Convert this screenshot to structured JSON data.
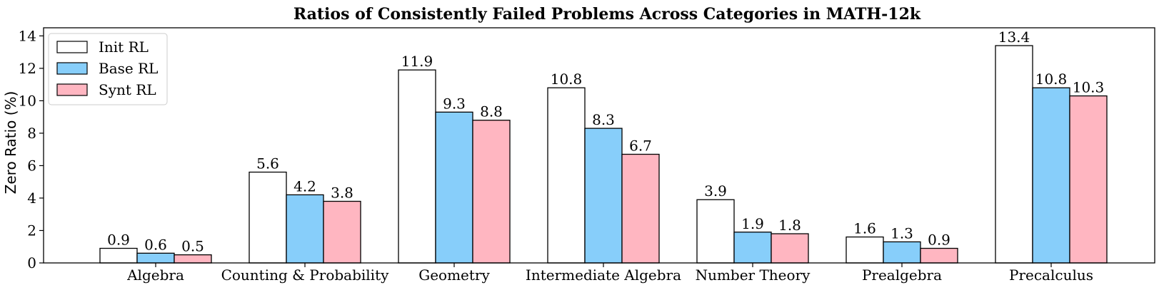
{
  "chart_data": {
    "type": "bar",
    "title": "Ratios of Consistently Failed Problems Across Categories in MATH-12k",
    "xlabel": "",
    "ylabel": "Zero Ratio (%)",
    "ylim": [
      0,
      14.5
    ],
    "yticks": [
      0,
      2,
      4,
      6,
      8,
      10,
      12,
      14
    ],
    "grid": false,
    "legend_position": "top-left",
    "categories": [
      "Algebra",
      "Counting & Probability",
      "Geometry",
      "Intermediate Algebra",
      "Number Theory",
      "Prealgebra",
      "Precalculus"
    ],
    "series": [
      {
        "name": "Init RL",
        "color": "#ffffff",
        "values": [
          0.9,
          5.6,
          11.9,
          10.8,
          3.9,
          1.6,
          13.4
        ]
      },
      {
        "name": "Base RL",
        "color": "#87cefa",
        "values": [
          0.6,
          4.2,
          9.3,
          8.3,
          1.9,
          1.3,
          10.8
        ]
      },
      {
        "name": "Synt RL",
        "color": "#ffb6c1",
        "values": [
          0.5,
          3.8,
          8.8,
          6.7,
          1.8,
          0.9,
          10.3
        ]
      }
    ]
  }
}
